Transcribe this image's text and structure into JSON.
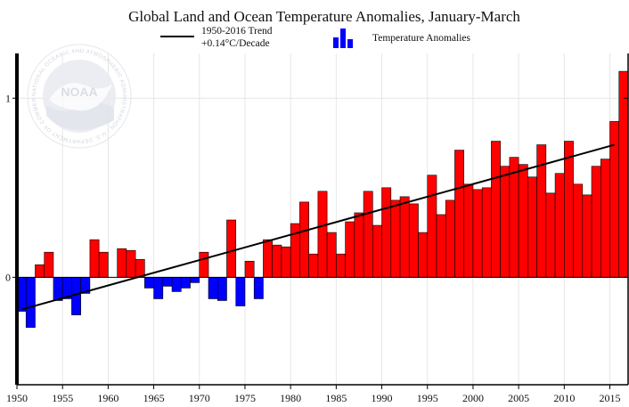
{
  "chart_data": {
    "type": "bar",
    "title": "Global Land and Ocean Temperature Anomalies, January-March",
    "xlabel": "",
    "ylabel": "",
    "xlim": [
      1950,
      2017
    ],
    "ylim": [
      -0.6,
      1.25
    ],
    "x_ticks": [
      1950,
      1955,
      1960,
      1965,
      1970,
      1975,
      1980,
      1985,
      1990,
      1995,
      2000,
      2005,
      2010,
      2015
    ],
    "y_ticks": [
      0,
      1
    ],
    "grid": true,
    "colors": {
      "positive": "#ff0000",
      "negative": "#0000ff",
      "trend": "#000000"
    },
    "series": [
      {
        "name": "Temperature Anomalies",
        "x": [
          1950,
          1951,
          1952,
          1953,
          1954,
          1955,
          1956,
          1957,
          1958,
          1959,
          1960,
          1961,
          1962,
          1963,
          1964,
          1965,
          1966,
          1967,
          1968,
          1969,
          1970,
          1971,
          1972,
          1973,
          1974,
          1975,
          1976,
          1977,
          1978,
          1979,
          1980,
          1981,
          1982,
          1983,
          1984,
          1985,
          1986,
          1987,
          1988,
          1989,
          1990,
          1991,
          1992,
          1993,
          1994,
          1995,
          1996,
          1997,
          1998,
          1999,
          2000,
          2001,
          2002,
          2003,
          2004,
          2005,
          2006,
          2007,
          2008,
          2009,
          2010,
          2011,
          2012,
          2013,
          2014,
          2015,
          2016
        ],
        "values": [
          -0.19,
          -0.28,
          0.07,
          0.14,
          -0.13,
          -0.12,
          -0.21,
          -0.09,
          0.21,
          0.14,
          0.0,
          0.16,
          0.15,
          0.1,
          -0.06,
          -0.12,
          -0.05,
          -0.08,
          -0.06,
          -0.03,
          0.14,
          -0.12,
          -0.13,
          0.32,
          -0.16,
          0.09,
          -0.12,
          0.21,
          0.18,
          0.17,
          0.3,
          0.42,
          0.13,
          0.48,
          0.25,
          0.13,
          0.31,
          0.36,
          0.48,
          0.29,
          0.5,
          0.43,
          0.45,
          0.41,
          0.25,
          0.57,
          0.35,
          0.43,
          0.71,
          0.52,
          0.49,
          0.5,
          0.76,
          0.62,
          0.67,
          0.63,
          0.56,
          0.74,
          0.47,
          0.58,
          0.76,
          0.52,
          0.46,
          0.62,
          0.66,
          0.87,
          1.15
        ]
      },
      {
        "name": "1950-2016 Trend",
        "type": "line",
        "x": [
          1950,
          2015.5
        ],
        "values": [
          -0.18,
          0.74
        ]
      }
    ],
    "legend": {
      "position": "top",
      "trend_label": "1950-2016 Trend",
      "trend_sublabel": "+0.14°C/Decade",
      "bars_label": "Temperature Anomalies"
    },
    "watermark": {
      "logo": "NOAA",
      "ring_text": "NATIONAL OCEANIC AND ATMOSPHERIC ADMINISTRATION · U.S. DEPARTMENT OF COMMERCE"
    }
  }
}
